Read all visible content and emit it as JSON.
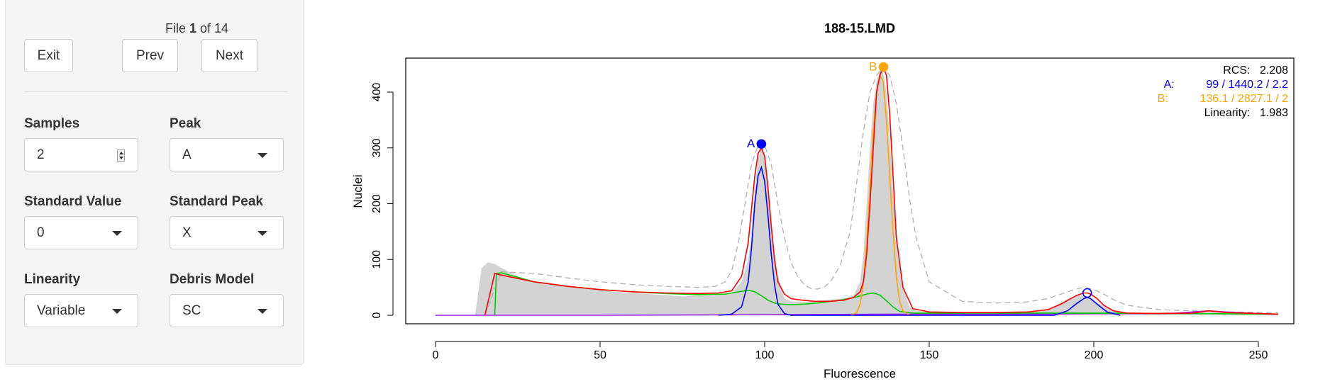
{
  "sidebar": {
    "file_prefix": "File ",
    "file_index": "1",
    "file_of": " of 14",
    "exit_label": "Exit",
    "prev_label": "Prev",
    "next_label": "Next",
    "samples_label": "Samples",
    "samples_value": "2",
    "peak_label": "Peak",
    "peak_value": "A",
    "std_value_label": "Standard Value",
    "std_value_value": "0",
    "std_peak_label": "Standard Peak",
    "std_peak_value": "X",
    "linearity_label": "Linearity",
    "linearity_value": "Variable",
    "debris_label": "Debris Model",
    "debris_value": "SC"
  },
  "colors": {
    "peak_a": "#0000ff",
    "peak_b": "#ffa500",
    "fit": "#ff0000",
    "debris": "#00cc00",
    "aggregate": "#a020f0",
    "histogram": "#d3d3d3",
    "dashed": "#b0b0b0"
  },
  "chart_data": {
    "type": "line",
    "title": "188-15.LMD",
    "xlabel": "Fluorescence",
    "ylabel": "Nuclei",
    "xlim": [
      0,
      256
    ],
    "ylim": [
      0,
      460
    ],
    "xticks": [
      0,
      50,
      100,
      150,
      200,
      250
    ],
    "yticks": [
      0,
      100,
      200,
      300,
      400
    ],
    "peaks": [
      {
        "name": "A",
        "x": 99,
        "y": 307,
        "filled": true,
        "color": "#0000ff"
      },
      {
        "name": "B",
        "x": 136.1,
        "y": 445,
        "filled": true,
        "color": "#ffa500"
      },
      {
        "name": "",
        "x": 198,
        "y": 40,
        "filled": false,
        "color": "#0000ff"
      }
    ],
    "annotations": [
      {
        "label": "RCS:",
        "value": "2.208",
        "color": "#000000"
      },
      {
        "label": "A:",
        "value": "99 / 1440.2 / 2.2",
        "color": "#0000ff"
      },
      {
        "label": "B:",
        "value": "136.1 / 2827.1 / 2",
        "color": "#ffa500"
      },
      {
        "label": "Linearity:",
        "value": "1.983",
        "color": "#000000"
      }
    ],
    "series": [
      {
        "name": "",
        "role": "histogram",
        "color": "#d3d3d3",
        "x": [
          12,
          14,
          16,
          18,
          20,
          25,
          30,
          35,
          40,
          45,
          50,
          55,
          60,
          65,
          70,
          75,
          80,
          85,
          90,
          93,
          95,
          96,
          97,
          98,
          99,
          100,
          101,
          102,
          103,
          104,
          106,
          108,
          110,
          113,
          116,
          120,
          124,
          127,
          129,
          130,
          131,
          132,
          133,
          134,
          135,
          136,
          137,
          138,
          139,
          140,
          142,
          144,
          146,
          150,
          160,
          170,
          180,
          185,
          188,
          191,
          194,
          196,
          198,
          200,
          203,
          206,
          210,
          220,
          230,
          235,
          240,
          250,
          256
        ],
        "y": [
          0,
          85,
          95,
          92,
          85,
          70,
          60,
          55,
          52,
          48,
          45,
          42,
          40,
          38,
          36,
          34,
          35,
          36,
          40,
          60,
          100,
          150,
          220,
          280,
          300,
          290,
          240,
          170,
          110,
          70,
          30,
          25,
          24,
          24,
          26,
          28,
          30,
          35,
          60,
          110,
          200,
          300,
          380,
          420,
          440,
          438,
          400,
          320,
          220,
          130,
          50,
          15,
          8,
          6,
          5,
          5,
          5,
          8,
          16,
          26,
          34,
          36,
          34,
          28,
          16,
          8,
          4,
          3,
          4,
          6,
          5,
          4,
          3
        ]
      },
      {
        "name": "",
        "role": "fit",
        "color": "#ff0000",
        "x": [
          15,
          18,
          20,
          30,
          40,
          50,
          60,
          70,
          80,
          86,
          90,
          93,
          95,
          96,
          97,
          98,
          99,
          100,
          101,
          102,
          103,
          104,
          106,
          108,
          110,
          115,
          120,
          124,
          127,
          129,
          130,
          131,
          132,
          133,
          134,
          135,
          136,
          137,
          138,
          139,
          140,
          142,
          145,
          150,
          160,
          170,
          180,
          186,
          190,
          193,
          195,
          197,
          198,
          199,
          201,
          203,
          206,
          210,
          220,
          230,
          235,
          240,
          250,
          256
        ],
        "y": [
          0,
          75,
          72,
          60,
          52,
          46,
          42,
          40,
          39,
          40,
          44,
          70,
          130,
          190,
          250,
          290,
          300,
          285,
          230,
          160,
          100,
          60,
          38,
          30,
          28,
          25,
          25,
          27,
          32,
          42,
          60,
          110,
          200,
          300,
          400,
          430,
          445,
          430,
          360,
          250,
          140,
          50,
          12,
          6,
          5,
          5,
          6,
          10,
          20,
          30,
          36,
          40,
          40,
          38,
          30,
          18,
          8,
          4,
          3,
          4,
          8,
          5,
          3,
          2
        ]
      },
      {
        "name": "",
        "role": "peak_a",
        "color": "#0000ff",
        "x": [
          86,
          90,
          93,
          95,
          96,
          97,
          98,
          99,
          100,
          101,
          102,
          103,
          104,
          106,
          108,
          188,
          192,
          195,
          197,
          198,
          199,
          201,
          204,
          208
        ],
        "y": [
          0,
          2,
          15,
          60,
          120,
          200,
          250,
          265,
          240,
          180,
          110,
          55,
          20,
          3,
          0,
          0,
          8,
          22,
          30,
          32,
          30,
          20,
          6,
          0
        ]
      },
      {
        "name": "",
        "role": "peak_b",
        "color": "#ffa500",
        "x": [
          126,
          128,
          129,
          130,
          131,
          132,
          133,
          134,
          135,
          136,
          137,
          138,
          139,
          140,
          141,
          142,
          144
        ],
        "y": [
          0,
          5,
          20,
          60,
          130,
          230,
          330,
          400,
          430,
          420,
          350,
          250,
          150,
          70,
          25,
          8,
          0
        ]
      },
      {
        "name": "",
        "role": "debris",
        "color": "#00cc00",
        "x": [
          18,
          18.5,
          20,
          25,
          30,
          40,
          50,
          60,
          70,
          80,
          88,
          92,
          95,
          97,
          99,
          101,
          103,
          105,
          108,
          112,
          116,
          120,
          124,
          128,
          131,
          133,
          135,
          137,
          139,
          141,
          145,
          150,
          170,
          200,
          230,
          256
        ],
        "y": [
          0,
          75,
          76,
          68,
          60,
          52,
          46,
          42,
          39,
          37,
          38,
          42,
          45,
          42,
          35,
          27,
          22,
          20,
          19,
          20,
          22,
          25,
          28,
          33,
          38,
          40,
          36,
          26,
          15,
          7,
          4,
          4,
          4,
          4,
          3,
          2
        ]
      },
      {
        "name": "",
        "role": "aggregate",
        "color": "#a020f0",
        "x": [
          0,
          50,
          100,
          140,
          180,
          200,
          215,
          225,
          230,
          235,
          240,
          250,
          256
        ],
        "y": [
          0,
          0,
          1,
          2,
          2,
          3,
          3,
          4,
          6,
          8,
          6,
          3,
          2
        ]
      },
      {
        "name": "",
        "role": "dashed",
        "color": "#b0b0b0",
        "x": [
          15,
          20,
          30,
          40,
          50,
          60,
          70,
          80,
          85,
          88,
          90,
          92,
          94,
          96,
          98,
          99,
          100,
          102,
          104,
          106,
          108,
          110,
          112,
          114,
          116,
          118,
          120,
          123,
          126,
          128,
          130,
          132,
          134,
          136,
          138,
          140,
          142,
          144,
          146,
          150,
          160,
          170,
          180,
          186,
          190,
          194,
          196,
          198,
          200,
          203,
          206,
          210,
          220,
          230,
          240,
          256
        ],
        "y": [
          0,
          78,
          75,
          67,
          60,
          55,
          52,
          50,
          52,
          60,
          80,
          130,
          200,
          270,
          305,
          310,
          305,
          270,
          200,
          140,
          95,
          70,
          55,
          48,
          47,
          50,
          60,
          90,
          150,
          240,
          330,
          400,
          430,
          445,
          430,
          380,
          300,
          210,
          140,
          60,
          25,
          22,
          24,
          30,
          38,
          46,
          49,
          49,
          46,
          38,
          28,
          18,
          10,
          8,
          6,
          5
        ]
      }
    ]
  }
}
